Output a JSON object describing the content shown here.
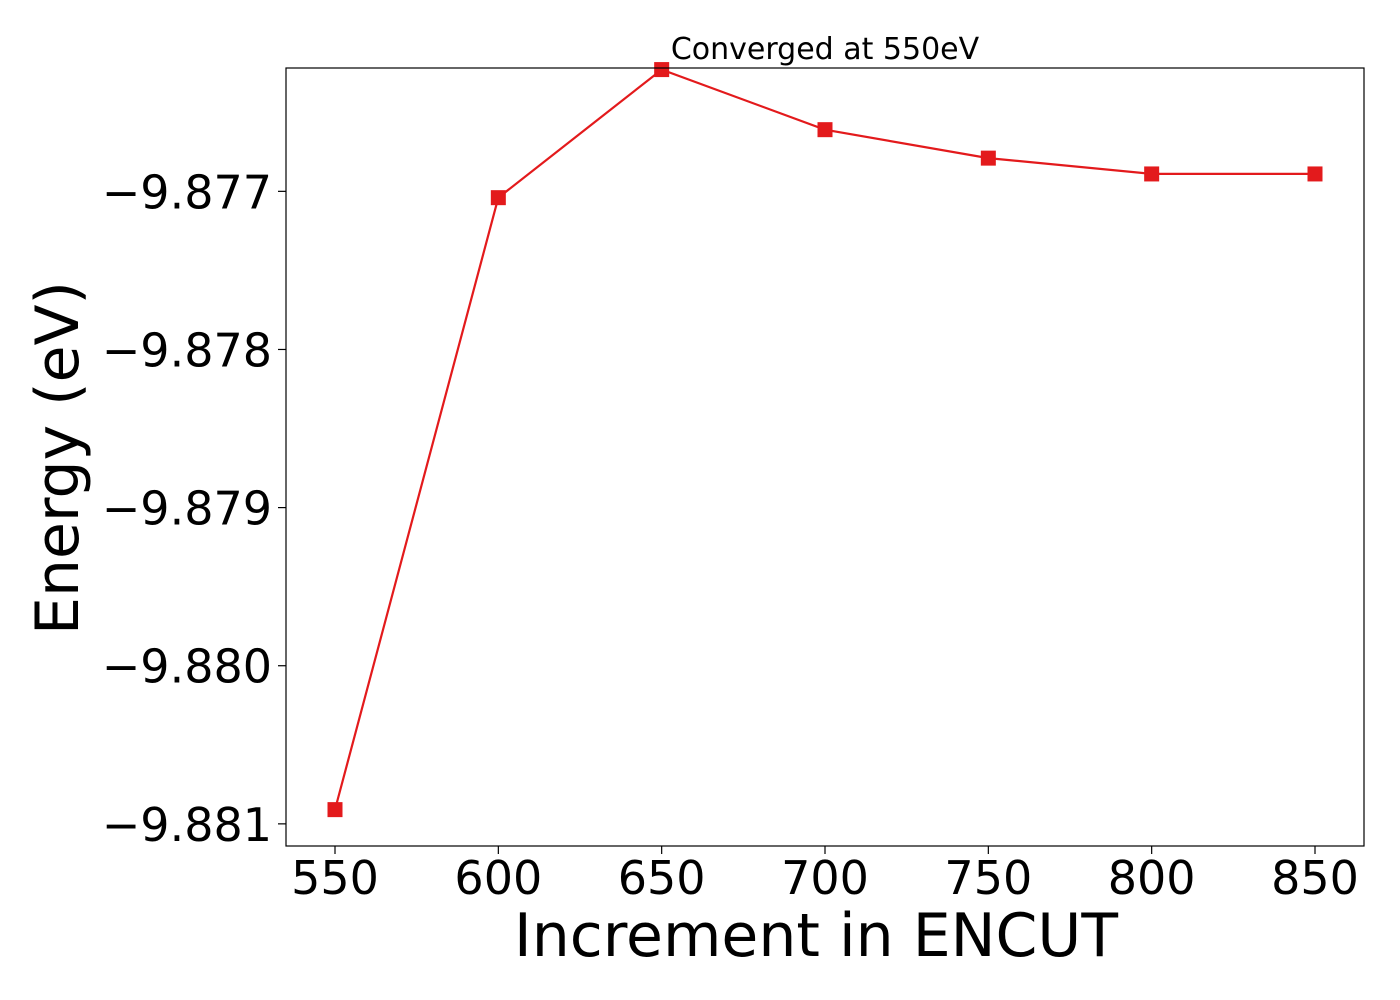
{
  "chart_data": {
    "type": "line",
    "title": "Converged at 550eV",
    "xlabel": "Increment in ENCUT",
    "ylabel": "Energy (eV)",
    "xlim": [
      535,
      865
    ],
    "ylim": [
      -9.88114,
      -9.87622
    ],
    "grid": false,
    "legend": "none",
    "x_ticks": [
      550,
      600,
      650,
      700,
      750,
      800,
      850
    ],
    "x_tick_labels": [
      "550",
      "600",
      "650",
      "700",
      "750",
      "800",
      "850"
    ],
    "y_ticks": [
      -9.877,
      -9.878,
      -9.879,
      -9.88,
      -9.881
    ],
    "y_tick_labels": [
      "−9.877",
      "−9.878",
      "−9.879",
      "−9.880",
      "−9.881"
    ],
    "series": [
      {
        "x": [
          550,
          600,
          650,
          700,
          750,
          800,
          850
        ],
        "values": [
          -9.88091,
          -9.87704,
          -9.87623,
          -9.87661,
          -9.87679,
          -9.87689,
          -9.87689
        ],
        "color": "#e31a1c",
        "marker": "square"
      }
    ]
  }
}
